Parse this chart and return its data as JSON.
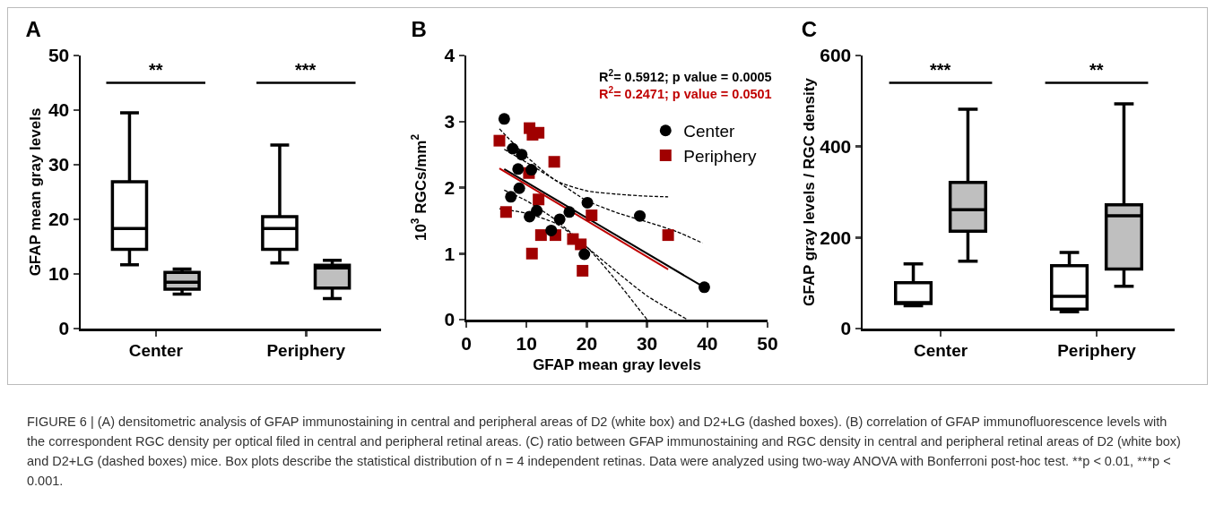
{
  "chart_data": [
    {
      "type": "box",
      "title": "A",
      "ylabel": "GFAP mean gray levels",
      "categories": [
        "Center",
        "Periphery"
      ],
      "ylim": [
        0,
        50
      ],
      "yticks": [
        0,
        10,
        20,
        30,
        40,
        50
      ],
      "grid": false,
      "legend": false,
      "series": [
        {
          "color": "#ffffff",
          "boxes": [
            {
              "low": 11.7,
              "q1": 14.5,
              "median": 18.3,
              "q3": 26.9,
              "high": 39.5
            },
            {
              "low": 12.0,
              "q1": 14.5,
              "median": 18.3,
              "q3": 20.5,
              "high": 33.6
            }
          ]
        },
        {
          "color": "#bfbfbf",
          "boxes": [
            {
              "low": 6.3,
              "q1": 7.2,
              "median": 8.5,
              "q3": 10.3,
              "high": 10.9
            },
            {
              "low": 5.5,
              "q1": 7.4,
              "median": 11.1,
              "q3": 11.6,
              "high": 12.5
            }
          ]
        }
      ],
      "annotations": [
        "**",
        "***"
      ]
    },
    {
      "type": "scatter",
      "title": "B",
      "xlabel": "GFAP mean gray levels",
      "ylabel": "10$^{3}$ RGCs/mm$^{2}$",
      "xlim": [
        0,
        50
      ],
      "xticks": [
        0,
        10,
        20,
        30,
        40,
        50
      ],
      "ylim": [
        0,
        4
      ],
      "yticks": [
        0,
        1,
        2,
        3,
        4
      ],
      "grid": false,
      "legend": "top right",
      "series": [
        {
          "name": "Center",
          "color": "#000000",
          "marker": "circle",
          "x": [
            6.3,
            7.7,
            9.2,
            8.6,
            10.8,
            8.8,
            7.4,
            20.1,
            17.1,
            11.7,
            10.5,
            15.5,
            28.8,
            14.1,
            19.6,
            39.5
          ],
          "values": [
            3.04,
            2.59,
            2.5,
            2.28,
            2.27,
            1.99,
            1.86,
            1.77,
            1.63,
            1.65,
            1.56,
            1.52,
            1.57,
            1.35,
            0.99,
            0.49
          ]
        },
        {
          "name": "Periphery",
          "color": "#a00000",
          "marker": "square",
          "x": [
            5.5,
            10.5,
            11.0,
            12.0,
            14.6,
            10.4,
            12.0,
            6.6,
            20.8,
            12.4,
            14.8,
            17.7,
            19.0,
            19.3,
            10.9,
            33.5
          ],
          "values": [
            2.71,
            2.9,
            2.8,
            2.83,
            2.39,
            2.22,
            1.82,
            1.63,
            1.58,
            1.28,
            1.28,
            1.22,
            1.14,
            0.74,
            1.0,
            1.28
          ]
        },
        {
          "type": "line",
          "color": "#000000",
          "line_style": "solid",
          "x": [
            6.3,
            39.3
          ],
          "values": [
            2.28,
            0.5
          ]
        },
        {
          "type": "line",
          "color": "#c00000",
          "line_style": "solid",
          "x": [
            5.5,
            33.5
          ],
          "values": [
            2.29,
            0.76
          ]
        },
        {
          "type": "line",
          "color": "#000000",
          "line_style": "dashed",
          "x": [
            6.3,
            10,
            15,
            20,
            25,
            30,
            35,
            39.2
          ],
          "values": [
            2.58,
            2.38,
            2.1,
            1.8,
            1.62,
            1.48,
            1.33,
            1.16
          ]
        },
        {
          "type": "line",
          "color": "#000000",
          "line_style": "dashed",
          "x": [
            6.3,
            10,
            15,
            20,
            25,
            30,
            36.7
          ],
          "values": [
            1.96,
            1.8,
            1.5,
            1.1,
            0.72,
            0.36,
            0
          ]
        },
        {
          "type": "line",
          "color": "#000000",
          "line_style": "dashed",
          "x": [
            5.5,
            10,
            15,
            20,
            25,
            30,
            33.5
          ],
          "values": [
            2.89,
            2.47,
            2.1,
            1.95,
            1.9,
            1.87,
            1.86
          ]
        },
        {
          "type": "line",
          "color": "#000000",
          "line_style": "dashed",
          "x": [
            5.5,
            10,
            15,
            20,
            25,
            30
          ],
          "values": [
            1.68,
            1.61,
            1.45,
            1.1,
            0.58,
            0
          ]
        }
      ],
      "annotations": [
        "R$^{2}$= 0.5912; p value = 0.0005",
        "R$^{2}$= 0.2471; p value = 0.0501"
      ]
    },
    {
      "type": "box",
      "title": "C",
      "ylabel": "GFAP gray levels / RGC density",
      "categories": [
        "Center",
        "Periphery"
      ],
      "ylim": [
        0,
        600
      ],
      "yticks": [
        0,
        200,
        400,
        600
      ],
      "grid": false,
      "legend": false,
      "series": [
        {
          "color": "#ffffff",
          "boxes": [
            {
              "low": 50,
              "q1": 55,
              "median": 55,
              "q3": 101,
              "high": 142
            },
            {
              "low": 37,
              "q1": 43,
              "median": 71,
              "q3": 138,
              "high": 167
            }
          ]
        },
        {
          "color": "#bfbfbf",
          "boxes": [
            {
              "low": 148,
              "q1": 214,
              "median": 261,
              "q3": 321,
              "high": 482
            },
            {
              "low": 93,
              "q1": 131,
              "median": 248,
              "q3": 272,
              "high": 494
            }
          ]
        }
      ],
      "annotations": [
        "***",
        "**"
      ]
    },
    {
      "type": "other",
      "annotations": [
        "FIGURE 6 | (A) densitometric analysis of GFAP immunostaining in central and peripheral areas of D2 (white box) and D2+LG (dashed boxes). (B) correlation of GFAP immunofluorescence levels with the correspondent RGC density per optical filed in central and peripheral retinal areas. (C) ratio between GFAP immunostaining and RGC density in central and peripheral retinal areas of D2 (white box) and D2+LG (dashed boxes) mice. Box plots describe the statistical distribution of n = 4 independent retinas. Data were analyzed using two-way ANOVA with Bonferroni post-hoc test. **p < 0.01, ***p < 0.001."
      ]
    }
  ]
}
